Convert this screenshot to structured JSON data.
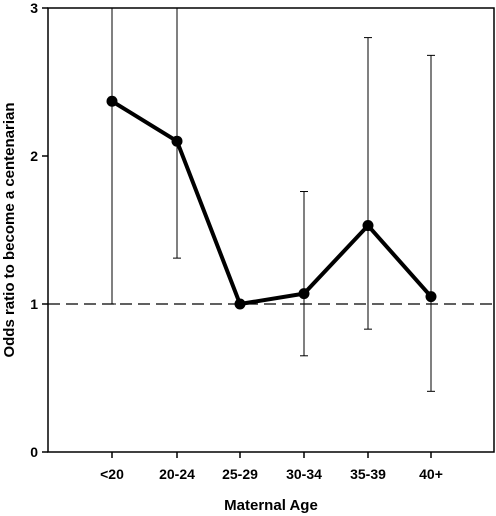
{
  "chart_data": {
    "type": "line",
    "title": "",
    "xlabel": "Maternal Age",
    "ylabel": "Odds ratio to become a centenarian",
    "categories": [
      "<20",
      "20-24",
      "25-29",
      "30-34",
      "35-39",
      "40+"
    ],
    "series": [
      {
        "values": [
          2.37,
          2.1,
          1.0,
          1.07,
          1.53,
          1.05
        ],
        "ci_lower": [
          1.0,
          1.31,
          1.0,
          0.65,
          0.83,
          0.41
        ],
        "ci_upper": [
          3.0,
          3.0,
          1.0,
          1.76,
          2.8,
          2.68
        ]
      }
    ],
    "ylim": [
      0,
      3
    ],
    "yticks": [
      "0",
      "1",
      "2",
      "3"
    ],
    "reference_line": 1,
    "grid": false,
    "legend": "none"
  }
}
